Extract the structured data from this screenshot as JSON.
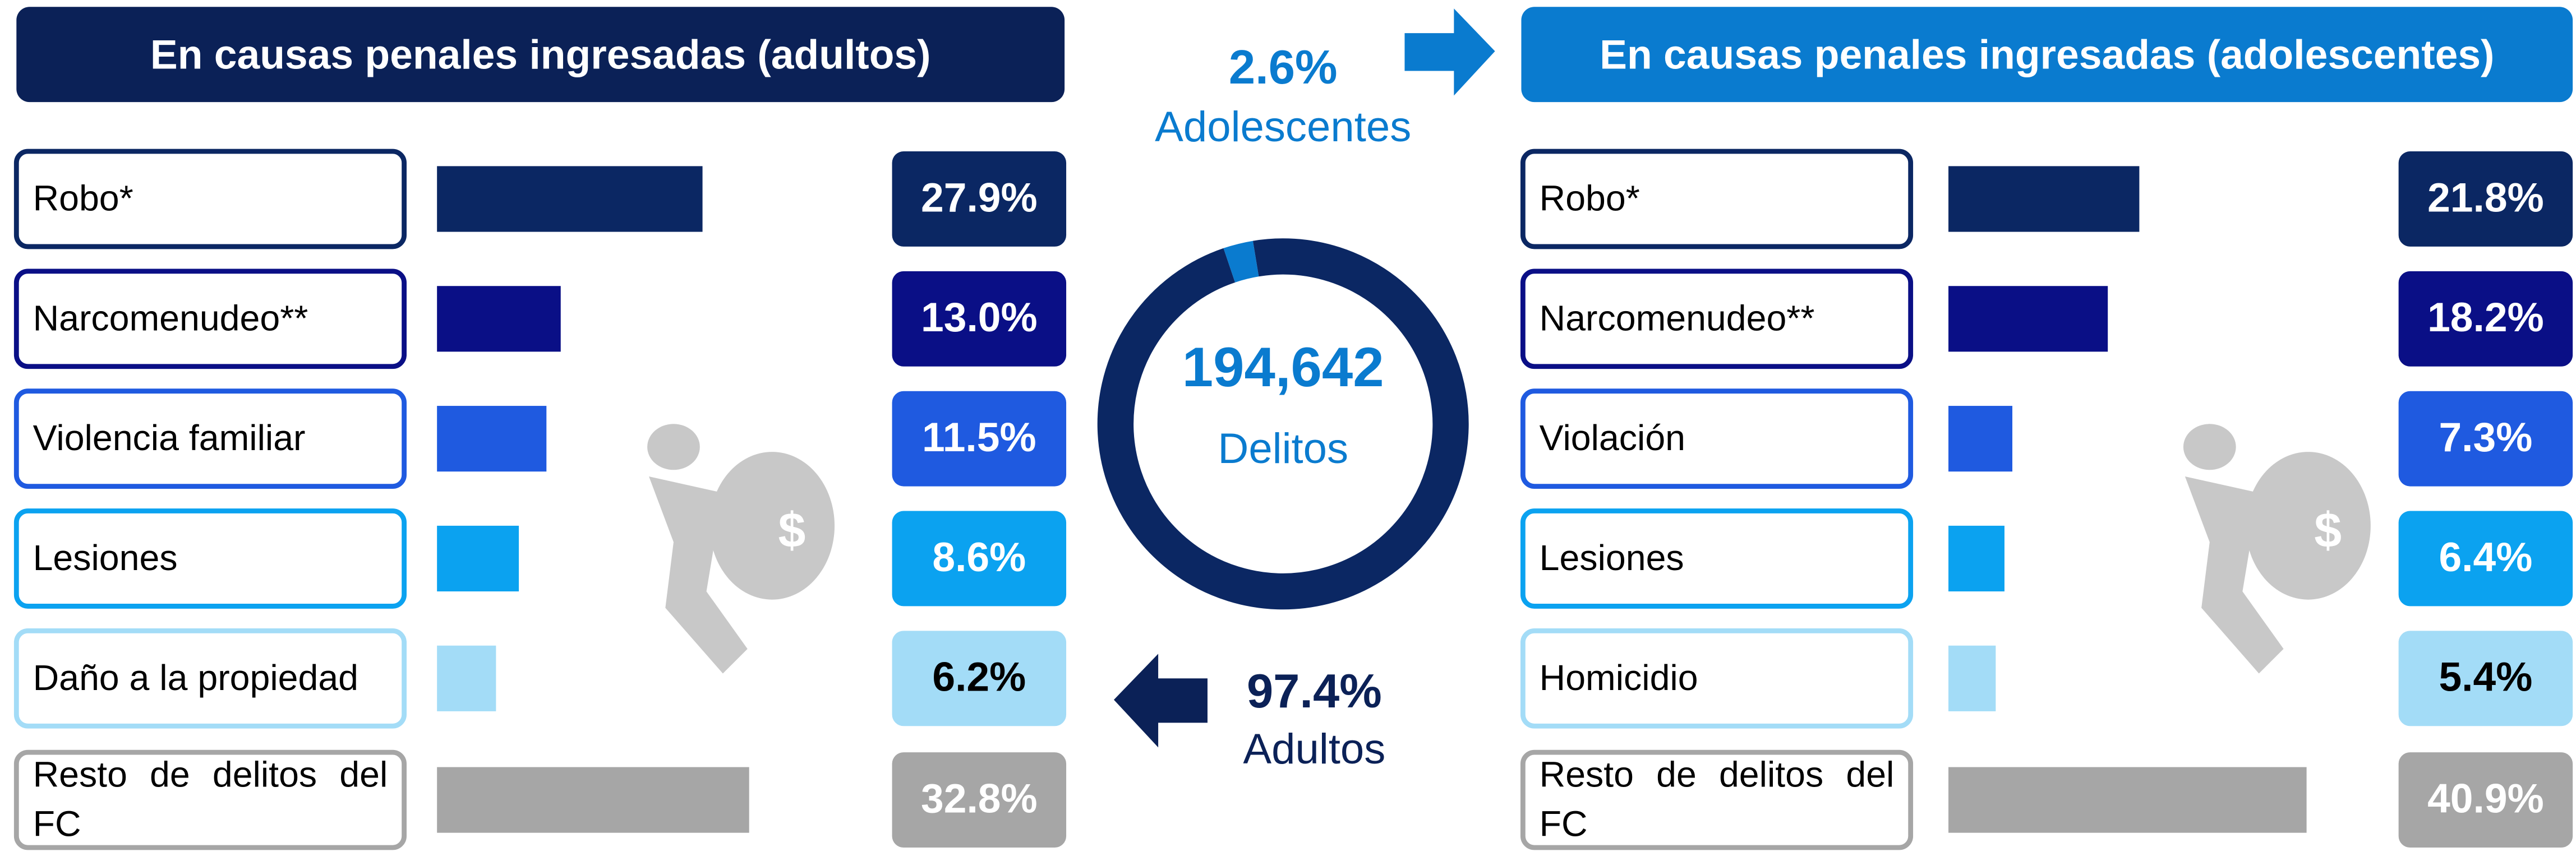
{
  "chart_data": [
    {
      "type": "bar",
      "title": "En causas penales ingresadas (adultos)",
      "categories": [
        "Robo*",
        "Narcomenudeo**",
        "Violencia familiar",
        "Lesiones",
        "Daño a la propiedad",
        "Resto de delitos del FC"
      ],
      "values": [
        27.9,
        13.0,
        11.5,
        8.6,
        6.2,
        32.8
      ],
      "value_labels": [
        "27.9%",
        "13.0%",
        "11.5%",
        "8.6%",
        "6.2%",
        "32.8%"
      ],
      "colors": [
        "#0b2763",
        "#0a0f86",
        "#1f5ae0",
        "#0ba2f0",
        "#a3dcf7",
        "#a6a6a6"
      ]
    },
    {
      "type": "bar",
      "title": "En causas penales ingresadas (adolescentes)",
      "categories": [
        "Robo*",
        "Narcomenudeo**",
        "Violación",
        "Lesiones",
        "Homicidio",
        "Resto de delitos del FC"
      ],
      "values": [
        21.8,
        18.2,
        7.3,
        6.4,
        5.4,
        40.9
      ],
      "value_labels": [
        "21.8%",
        "18.2%",
        "7.3%",
        "6.4%",
        "5.4%",
        "40.9%"
      ],
      "colors": [
        "#0b2763",
        "#0a0f86",
        "#1f5ae0",
        "#0ba2f0",
        "#a3dcf7",
        "#a6a6a6"
      ]
    },
    {
      "type": "pie",
      "center_label": "194,642",
      "center_sublabel": "Delitos",
      "series": [
        {
          "name": "Adultos",
          "color": "#0b2763",
          "values": [
            97.4
          ],
          "value_labels": [
            "97.4%"
          ]
        },
        {
          "name": "Adolescentes",
          "color": "#0a7bcf",
          "values": [
            2.6
          ],
          "value_labels": [
            "2.6%"
          ]
        }
      ]
    }
  ]
}
